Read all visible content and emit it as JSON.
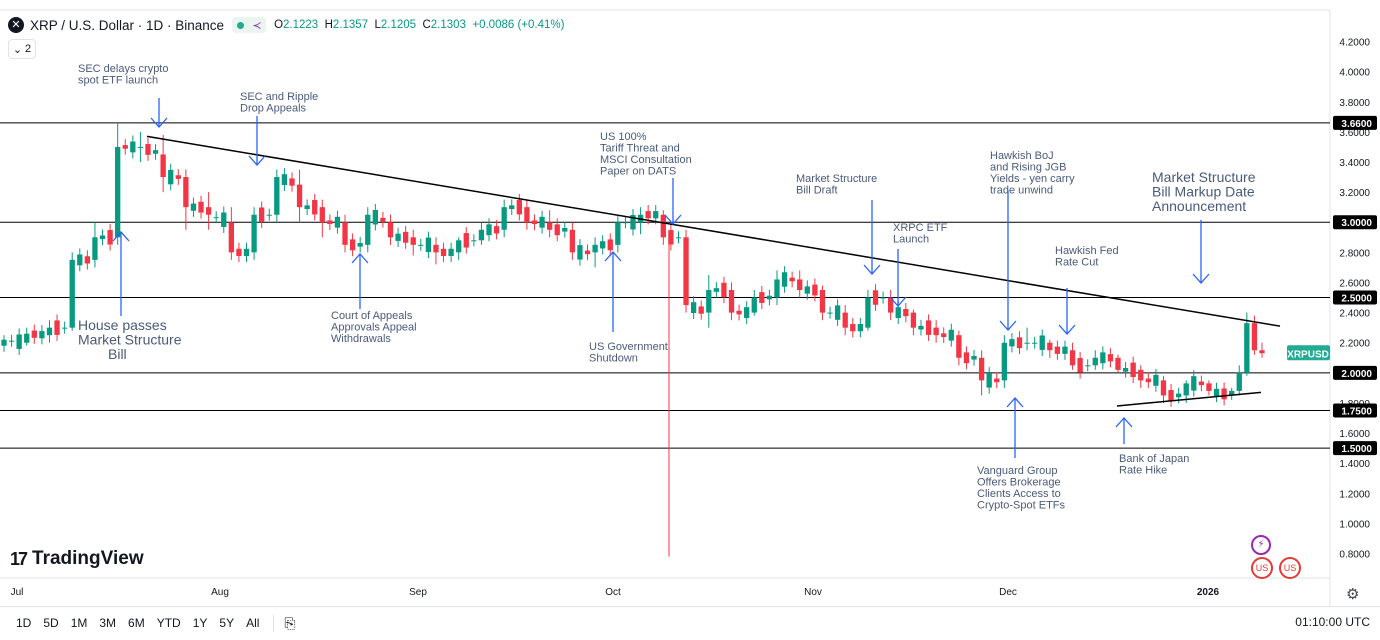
{
  "header": {
    "title": "XRP / U.S. Dollar · 1D · Binance",
    "symbol_icon": "xrp-logo-icon",
    "ohlc": {
      "o_label": "O",
      "o": "2.1223",
      "h_label": "H",
      "h": "2.1357",
      "l_label": "L",
      "l": "2.1205",
      "c_label": "C",
      "c": "2.1303",
      "change": "+0.0086 (+0.41%)"
    },
    "indicator_count": "2"
  },
  "colors": {
    "up": "#089981",
    "down": "#f23645",
    "annotation": "#2962ff",
    "text": "#4a5a7a",
    "line": "#000000",
    "last_price": "#22ab94"
  },
  "chart_data": {
    "type": "candlestick",
    "title": "XRP / U.S. Dollar · 1D · Binance",
    "x_tick_labels": [
      "Jul",
      "Aug",
      "Sep",
      "Oct",
      "Nov",
      "Dec",
      "2026"
    ],
    "y_tick_labels": [
      "0.8000",
      "1.0000",
      "1.2000",
      "1.4000",
      "1.6000",
      "1.8000",
      "2.0000",
      "2.2000",
      "2.4000",
      "2.6000",
      "2.8000",
      "3.0000",
      "3.2000",
      "3.4000",
      "3.6000",
      "3.8000",
      "4.0000",
      "4.2000"
    ],
    "ylim": [
      0.7,
      4.3
    ],
    "last_price_label": "XRPUSD",
    "last_price": 2.13,
    "horizontal_levels": [
      3.66,
      3.0,
      2.5,
      2.0,
      1.75,
      1.5
    ],
    "horizontal_level_labels": [
      "3.6600",
      "3.0000",
      "2.5000",
      "2.0000",
      "1.7500",
      "1.5000"
    ],
    "trendlines": [
      {
        "name": "descending resistance",
        "from": [
          "2025-07-19",
          3.57
        ],
        "to": [
          "2026-01-17",
          2.31
        ]
      },
      {
        "name": "rising support",
        "from": [
          "2025-12-17",
          1.78
        ],
        "to": [
          "2026-01-12",
          1.87
        ]
      }
    ],
    "candles_ohlc_approx": [
      [
        2.18,
        2.25,
        2.14,
        2.22
      ],
      [
        2.2,
        2.3,
        2.18,
        2.26
      ],
      [
        2.25,
        2.35,
        2.2,
        2.3
      ],
      [
        2.3,
        2.8,
        2.28,
        2.75
      ],
      [
        2.75,
        3.0,
        2.7,
        2.9
      ],
      [
        2.9,
        3.66,
        2.85,
        3.5
      ],
      [
        3.5,
        3.6,
        3.4,
        3.5
      ],
      [
        3.45,
        3.58,
        3.2,
        3.3
      ],
      [
        3.3,
        3.35,
        2.95,
        3.1
      ],
      [
        3.1,
        3.2,
        2.95,
        3.05
      ],
      [
        3.0,
        3.1,
        2.75,
        2.8
      ],
      [
        2.8,
        3.1,
        2.75,
        3.05
      ],
      [
        3.05,
        3.35,
        3.0,
        3.3
      ],
      [
        3.25,
        3.35,
        3.0,
        3.1
      ],
      [
        3.1,
        3.15,
        2.9,
        3.0
      ],
      [
        3.0,
        3.05,
        2.8,
        2.85
      ],
      [
        2.85,
        3.1,
        2.8,
        3.05
      ],
      [
        3.0,
        3.05,
        2.85,
        2.9
      ],
      [
        2.9,
        2.95,
        2.78,
        2.85
      ],
      [
        2.85,
        2.9,
        2.72,
        2.8
      ],
      [
        2.8,
        2.9,
        2.75,
        2.88
      ],
      [
        2.88,
        3.0,
        2.85,
        2.95
      ],
      [
        2.95,
        3.15,
        2.9,
        3.1
      ],
      [
        3.1,
        3.15,
        2.95,
        3.0
      ],
      [
        3.0,
        3.08,
        2.9,
        2.95
      ],
      [
        2.95,
        3.0,
        2.75,
        2.8
      ],
      [
        2.8,
        2.9,
        2.7,
        2.85
      ],
      [
        2.85,
        3.05,
        2.8,
        3.0
      ],
      [
        3.0,
        3.1,
        2.92,
        3.05
      ],
      [
        3.05,
        3.08,
        2.85,
        2.9
      ],
      [
        2.9,
        2.95,
        2.4,
        2.45
      ],
      [
        2.4,
        2.65,
        2.3,
        2.55
      ],
      [
        2.55,
        2.6,
        2.35,
        2.4
      ],
      [
        2.4,
        2.55,
        2.38,
        2.5
      ],
      [
        2.5,
        2.68,
        2.45,
        2.62
      ],
      [
        2.62,
        2.68,
        2.5,
        2.55
      ],
      [
        2.55,
        2.58,
        2.35,
        2.4
      ],
      [
        2.4,
        2.45,
        2.25,
        2.3
      ],
      [
        2.3,
        2.55,
        2.28,
        2.5
      ],
      [
        2.5,
        2.55,
        2.35,
        2.4
      ],
      [
        2.4,
        2.42,
        2.25,
        2.3
      ],
      [
        2.3,
        2.35,
        2.2,
        2.25
      ],
      [
        2.25,
        2.28,
        2.05,
        2.1
      ],
      [
        2.1,
        2.15,
        1.85,
        1.95
      ],
      [
        1.95,
        2.25,
        1.9,
        2.2
      ],
      [
        2.2,
        2.3,
        2.15,
        2.2
      ],
      [
        2.2,
        2.22,
        2.1,
        2.15
      ],
      [
        2.15,
        2.2,
        2.02,
        2.05
      ],
      [
        2.05,
        2.15,
        2.02,
        2.1
      ],
      [
        2.1,
        2.12,
        2.0,
        2.02
      ],
      [
        2.02,
        2.05,
        1.9,
        1.95
      ],
      [
        1.95,
        1.98,
        1.8,
        1.85
      ],
      [
        1.85,
        1.95,
        1.8,
        1.93
      ],
      [
        1.93,
        1.95,
        1.85,
        1.88
      ],
      [
        1.85,
        1.9,
        1.82,
        1.88
      ],
      [
        1.88,
        2.05,
        1.85,
        2.0
      ],
      [
        2.0,
        2.4,
        1.98,
        2.33
      ],
      [
        2.33,
        2.38,
        2.12,
        2.15
      ],
      [
        2.15,
        2.2,
        2.1,
        2.13
      ]
    ],
    "annotations": [
      "SEC delays crypto spot ETF launch",
      "House passes Market Structure Bill",
      "SEC and Ripple Drop Appeals",
      "Court of Appeals Approvals Appeal Withdrawals",
      "US 100% Tariff Threat and MSCI Consultation Paper on DATS",
      "US Government Shutdown",
      "Market Structure Bill Draft",
      "XRPC ETF Launch",
      "Hawkish BoJ and Rising JGB Yields - yen carry trade unwind",
      "Vanguard Group Offers Brokerage Clients Access to Crypto-Spot ETFs",
      "Hawkish Fed Rate Cut",
      "Bank of Japan Rate Hike",
      "Market Structure Bill Markup Date Announcement"
    ]
  },
  "footer": {
    "timeframes": [
      "1D",
      "5D",
      "1M",
      "3M",
      "6M",
      "YTD",
      "1Y",
      "5Y",
      "All"
    ],
    "clock": "01:10:00 UTC",
    "logo_text": "TradingView",
    "calendar_icon": "calendar-goto-icon",
    "settings_icon": "gear-icon"
  }
}
